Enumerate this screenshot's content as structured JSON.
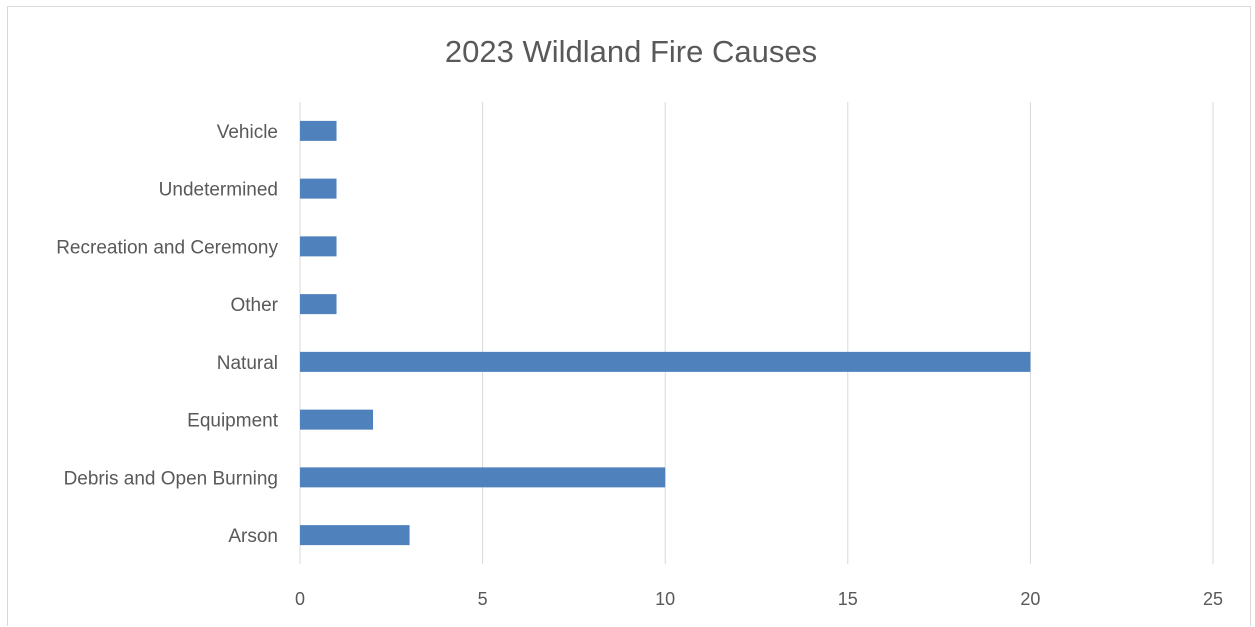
{
  "chart_data": {
    "type": "bar",
    "orientation": "horizontal",
    "title": "2023 Wildland Fire Causes",
    "xlabel": "",
    "ylabel": "",
    "categories": [
      "Arson",
      "Debris and Open Burning",
      "Equipment",
      "Natural",
      "Other",
      "Recreation and Ceremony",
      "Undetermined",
      "Vehicle"
    ],
    "values": [
      3,
      10,
      2,
      20,
      1,
      1,
      1,
      1
    ],
    "xlim": [
      0,
      25
    ],
    "x_ticks": [
      0,
      5,
      10,
      15,
      20,
      25
    ],
    "grid": "vertical",
    "legend": "none",
    "bar_color": "#4f81bd"
  }
}
